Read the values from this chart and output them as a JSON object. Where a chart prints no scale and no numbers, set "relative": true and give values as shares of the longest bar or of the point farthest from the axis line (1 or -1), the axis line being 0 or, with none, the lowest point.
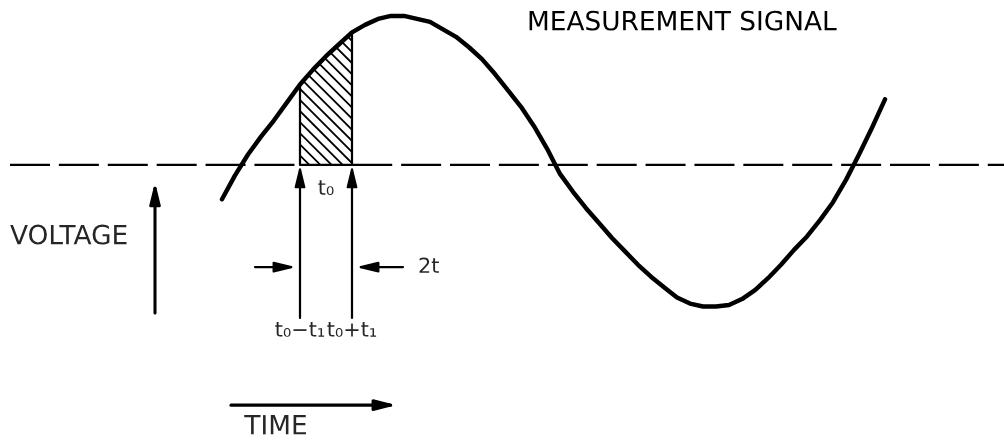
{
  "chart_data": {
    "type": "line",
    "relative": true,
    "xlabel": "TIME",
    "ylabel": "VOLTAGE",
    "tick_labels": "x",
    "marker": "none",
    "categories": [
      null,
      null,
      null,
      null,
      null,
      null,
      "t₀−t₁",
      null,
      "t₀",
      null,
      "t₀+t₁",
      null,
      null,
      null,
      null,
      null,
      null,
      null,
      null,
      null,
      null,
      null,
      null,
      null,
      null,
      null,
      null,
      null,
      null,
      null,
      null,
      null,
      null,
      null,
      null,
      null,
      null,
      null,
      null,
      null,
      null,
      null,
      null,
      null,
      null,
      null,
      null,
      null,
      null,
      null,
      null,
      null
    ],
    "series": [
      {
        "name": "MEASUREMENT SIGNAL",
        "color": "#000000",
        "values": [
          -0.23,
          -0.07,
          0.07,
          0.19,
          0.3,
          0.42,
          0.54,
          0.64,
          0.73,
          0.81,
          0.89,
          0.94,
          0.98,
          1.0,
          1.0,
          0.98,
          0.96,
          0.91,
          0.86,
          0.79,
          0.71,
          0.61,
          0.5,
          0.39,
          0.26,
          0.11,
          -0.06,
          -0.18,
          -0.29,
          -0.39,
          -0.49,
          -0.58,
          -0.67,
          -0.75,
          -0.82,
          -0.89,
          -0.93,
          -0.95,
          -0.95,
          -0.94,
          -0.9,
          -0.84,
          -0.76,
          -0.67,
          -0.57,
          -0.48,
          -0.37,
          -0.25,
          -0.1,
          0.07,
          0.25,
          0.44
        ]
      },
      {
        "type": "area",
        "color": "#000000",
        "values": [
          null,
          null,
          null,
          null,
          null,
          null,
          0.54,
          0.64,
          0.73,
          0.81,
          0.89,
          null,
          null,
          null,
          null,
          null,
          null,
          null,
          null,
          null,
          null,
          null,
          null,
          null,
          null,
          null,
          null,
          null,
          null,
          null,
          null,
          null,
          null,
          null,
          null,
          null,
          null,
          null,
          null,
          null,
          null,
          null,
          null,
          null,
          null,
          null,
          null,
          null,
          null,
          null,
          null,
          null
        ]
      }
    ],
    "ref_lines": [
      {
        "axis": "y",
        "value": 0,
        "line_style": "dashed",
        "color": "#000000"
      }
    ],
    "annotations": [
      "2t"
    ]
  }
}
